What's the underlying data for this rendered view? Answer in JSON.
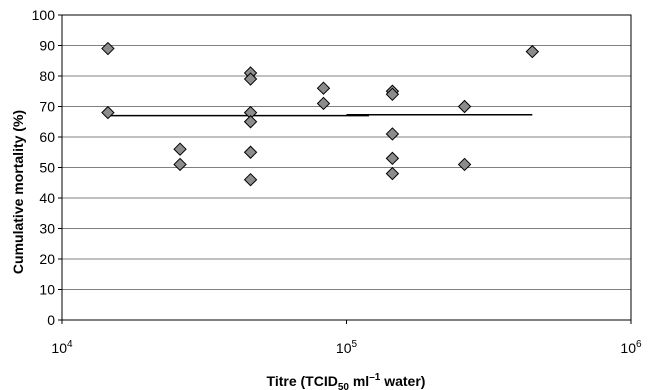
{
  "chart_data": {
    "type": "scatter",
    "xlabel": {
      "pre": "Titre (TCID",
      "sub": "50",
      "mid": " ml",
      "sup": "–1",
      "post": " water)"
    },
    "ylabel": "Cumulative mortality (%)",
    "x_scale": "log",
    "xlim": [
      10000,
      1000000
    ],
    "ylim": [
      0,
      100
    ],
    "grid": true,
    "x_ticks": [
      {
        "base": "10",
        "exp": "4",
        "value": 10000
      },
      {
        "base": "10",
        "exp": "5",
        "value": 100000
      },
      {
        "base": "10",
        "exp": "6",
        "value": 1000000
      }
    ],
    "y_ticks": [
      "0",
      "10",
      "20",
      "30",
      "40",
      "50",
      "60",
      "70",
      "80",
      "90",
      "100"
    ],
    "points": [
      {
        "x": 14500,
        "y": 89
      },
      {
        "x": 14500,
        "y": 68
      },
      {
        "x": 26000,
        "y": 56
      },
      {
        "x": 26000,
        "y": 51
      },
      {
        "x": 46000,
        "y": 81
      },
      {
        "x": 46000,
        "y": 79
      },
      {
        "x": 46000,
        "y": 68
      },
      {
        "x": 46000,
        "y": 65
      },
      {
        "x": 46000,
        "y": 55
      },
      {
        "x": 46000,
        "y": 46
      },
      {
        "x": 83000,
        "y": 76
      },
      {
        "x": 83000,
        "y": 71
      },
      {
        "x": 145000,
        "y": 75
      },
      {
        "x": 145000,
        "y": 74
      },
      {
        "x": 145000,
        "y": 61
      },
      {
        "x": 145000,
        "y": 53
      },
      {
        "x": 145000,
        "y": 48
      },
      {
        "x": 260000,
        "y": 70
      },
      {
        "x": 260000,
        "y": 51
      },
      {
        "x": 450000,
        "y": 88
      }
    ],
    "trendline_segments": [
      {
        "x1": 14500,
        "y1": 67,
        "x2": 120000,
        "y2": 67
      },
      {
        "x1": 100000,
        "y1": 67.3,
        "x2": 450000,
        "y2": 67.3
      }
    ],
    "colors": {
      "marker_fill": "#8c8c8c",
      "marker_stroke": "#000000",
      "grid": "#808080",
      "line": "#000000"
    }
  }
}
